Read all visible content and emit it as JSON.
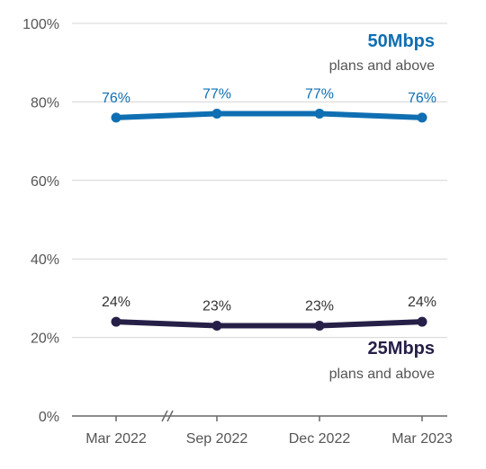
{
  "chart_data": {
    "type": "line",
    "categories": [
      "Mar 2022",
      "Sep 2022",
      "Dec 2022",
      "Mar 2023"
    ],
    "ylim": [
      0,
      100
    ],
    "yticks": [
      0,
      20,
      40,
      60,
      80,
      100
    ],
    "ytick_labels": [
      "0%",
      "20%",
      "40%",
      "60%",
      "80%",
      "100%"
    ],
    "grid": true,
    "axis_break": "between Mar 2022 and Sep 2022",
    "series": [
      {
        "name": "50Mbps",
        "subtitle": "plans and above",
        "values": [
          76,
          77,
          77,
          76
        ],
        "labels": [
          "76%",
          "77%",
          "77%",
          "76%"
        ],
        "color": "#0f6fb2"
      },
      {
        "name": "25Mbps",
        "subtitle": "plans and above",
        "values": [
          24,
          23,
          23,
          24
        ],
        "labels": [
          "24%",
          "23%",
          "23%",
          "24%"
        ],
        "color": "#262048"
      }
    ]
  }
}
